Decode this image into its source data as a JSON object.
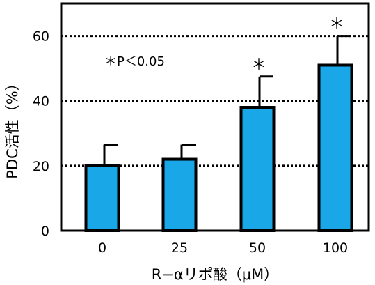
{
  "chart_data": {
    "type": "bar",
    "categories": [
      "0",
      "25",
      "50",
      "100"
    ],
    "values": [
      20,
      22,
      38,
      51
    ],
    "errors": [
      6.5,
      4.5,
      9.5,
      9
    ],
    "significance": [
      "",
      "",
      "＊",
      "＊"
    ],
    "xlabel": "R−αリポ酸（μM）",
    "ylabel": "PDC活性（%）",
    "ylim": [
      0,
      70
    ],
    "yticks": [
      0,
      20,
      40,
      60
    ],
    "grid": "dotted horizontal at 20, 40, 60",
    "annotation": "＊P＜0.05",
    "colors": {
      "bar": "#1aa7e8",
      "bar_edge": "#000000",
      "frame": "#000000",
      "grid": "#000000"
    }
  }
}
